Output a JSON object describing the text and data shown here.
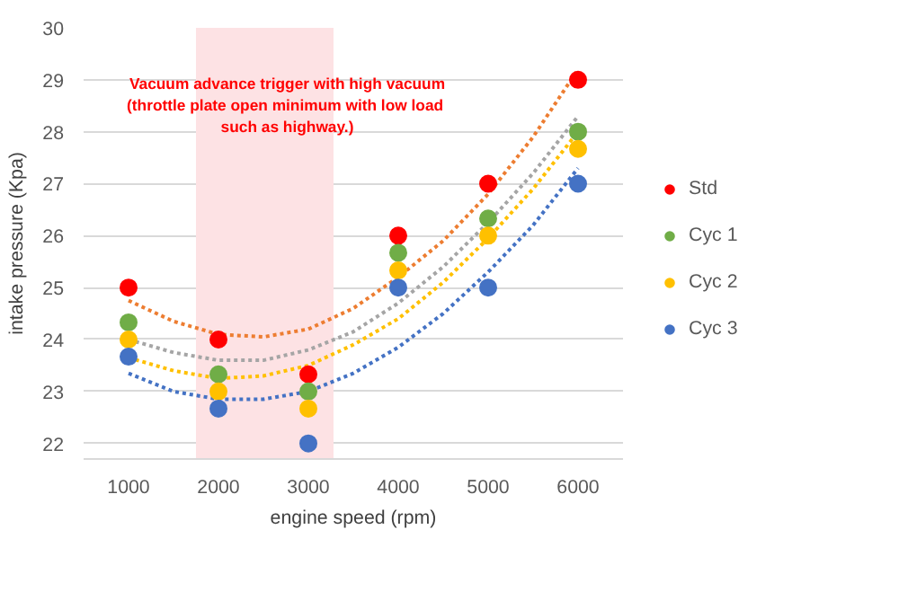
{
  "chart_data": {
    "type": "scatter",
    "xlabel": "engine speed (rpm)",
    "ylabel": "intake pressure (Kpa)",
    "x": [
      1000,
      2000,
      3000,
      4000,
      5000,
      6000
    ],
    "xlim": [
      500,
      6500
    ],
    "xticks": [
      1000,
      2000,
      3000,
      4000,
      5000,
      6000
    ],
    "ylim": [
      21.7,
      30
    ],
    "yticks": [
      22,
      23,
      24,
      25,
      26,
      27,
      28,
      29,
      30
    ],
    "grid": "y",
    "legend": "right",
    "marker": "circle",
    "bands": [
      {
        "axis": "x",
        "from": 1750,
        "to": 3280,
        "color": "#fde2e4",
        "label": "Vacuum advance trigger with high vacuum\n(throttle plate open minimum with  low load\nsuch as highway.)"
      }
    ],
    "series": [
      {
        "type": "line",
        "line_style": "dotted",
        "marker": "none",
        "color": "#ed7d31",
        "x": [
          1000,
          1500,
          2000,
          2500,
          3000,
          3500,
          4000,
          4500,
          5000,
          5500,
          6000
        ],
        "values": [
          24.75,
          24.35,
          24.1,
          24.05,
          24.2,
          24.6,
          25.2,
          25.9,
          26.8,
          27.9,
          29.2
        ]
      },
      {
        "type": "line",
        "line_style": "dotted",
        "marker": "none",
        "color": "#a5a5a5",
        "x": [
          1000,
          1500,
          2000,
          2500,
          3000,
          3500,
          4000,
          4500,
          5000,
          5500,
          6000
        ],
        "values": [
          24.0,
          23.75,
          23.6,
          23.6,
          23.8,
          24.15,
          24.7,
          25.4,
          26.25,
          27.2,
          28.3
        ]
      },
      {
        "type": "line",
        "line_style": "dotted",
        "marker": "none",
        "color": "#ffc000",
        "x": [
          1000,
          1500,
          2000,
          2500,
          3000,
          3500,
          4000,
          4500,
          5000,
          5500,
          6000
        ],
        "values": [
          23.65,
          23.4,
          23.25,
          23.3,
          23.5,
          23.9,
          24.4,
          25.1,
          25.95,
          26.9,
          28.0
        ]
      },
      {
        "type": "line",
        "line_style": "dotted",
        "marker": "none",
        "color": "#4472c4",
        "x": [
          1000,
          1500,
          2000,
          2500,
          3000,
          3500,
          4000,
          4500,
          5000,
          5500,
          6000
        ],
        "values": [
          23.35,
          23.0,
          22.85,
          22.85,
          23.0,
          23.35,
          23.85,
          24.5,
          25.3,
          26.2,
          27.3
        ]
      },
      {
        "name": "Std",
        "color": "#ff0000",
        "values": [
          25,
          24,
          23.33,
          26,
          27,
          29
        ]
      },
      {
        "name": "Cyc 1",
        "color": "#70ad47",
        "values": [
          24.33,
          23.33,
          23,
          25.67,
          26.33,
          28
        ]
      },
      {
        "name": "Cyc 2",
        "color": "#ffc000",
        "values": [
          24,
          23,
          22.67,
          25.33,
          26,
          27.67
        ]
      },
      {
        "name": "Cyc 3",
        "color": "#4472c4",
        "values": [
          23.67,
          22.67,
          22,
          25,
          25,
          27
        ]
      }
    ]
  }
}
